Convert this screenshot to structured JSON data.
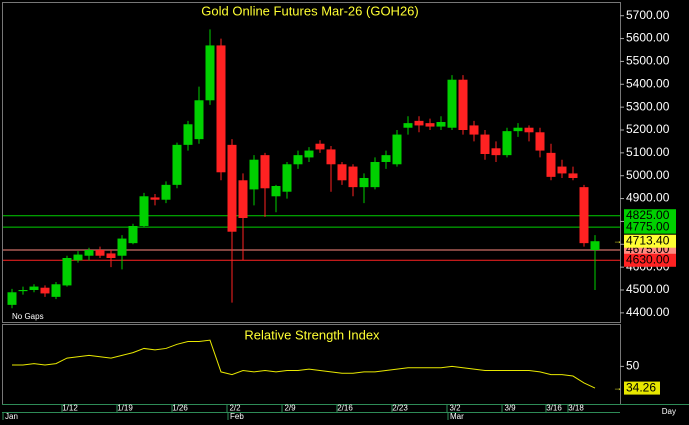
{
  "chart_data": {
    "type": "candlestick",
    "title": "Gold Online Futures Mar-26 (GOH26)",
    "note": "No Gaps",
    "x_unit": "Day",
    "xticks": [
      {
        "value": 5,
        "label": "1/12"
      },
      {
        "value": 10,
        "label": "1/19"
      },
      {
        "value": 15,
        "label": "1/26"
      },
      {
        "value": 20,
        "label": "2/2"
      },
      {
        "value": 25,
        "label": "2/9"
      },
      {
        "value": 30,
        "label": "2/16"
      },
      {
        "value": 35,
        "label": "2/23"
      },
      {
        "value": 40,
        "label": "3/2"
      },
      {
        "value": 45,
        "label": "3/9"
      },
      {
        "value": 49,
        "label": "3/16"
      },
      {
        "value": 51,
        "label": "3/18"
      }
    ],
    "months": [
      {
        "value": 0,
        "label": "Jan"
      },
      {
        "value": 20,
        "label": "Feb"
      },
      {
        "value": 40,
        "label": "Mar"
      }
    ],
    "ylim": [
      4360,
      5760
    ],
    "yticks": [
      {
        "value": 4400,
        "label": "4400.00"
      },
      {
        "value": 4500,
        "label": "4500.00"
      },
      {
        "value": 4600,
        "label": "4600.00"
      },
      {
        "value": 4700,
        "label": "4700.00"
      },
      {
        "value": 4800,
        "label": "4800.00"
      },
      {
        "value": 4900,
        "label": "4900.00"
      },
      {
        "value": 5000,
        "label": "5000.00"
      },
      {
        "value": 5100,
        "label": "5100.00"
      },
      {
        "value": 5200,
        "label": "5200.00"
      },
      {
        "value": 5300,
        "label": "5300.00"
      },
      {
        "value": 5400,
        "label": "5400.00"
      },
      {
        "value": 5500,
        "label": "5500.00"
      },
      {
        "value": 5600,
        "label": "5600.00"
      },
      {
        "value": 5700,
        "label": "5700.00"
      }
    ],
    "up_color": "#00d000",
    "down_color": "#ff2222",
    "open": [
      4435,
      4495,
      4500,
      4510,
      4470,
      4520,
      4630,
      4650,
      4675,
      4660,
      4650,
      4705,
      4780,
      4905,
      4895,
      4960,
      5135,
      5160,
      5330,
      5570,
      5135,
      4980,
      4940,
      5090,
      4910,
      4930,
      5050,
      5080,
      5140,
      5115,
      5050,
      5040,
      4950,
      4950,
      5060,
      5050,
      5210,
      5240,
      5230,
      5215,
      5210,
      5420,
      5220,
      5180,
      5120,
      5090,
      5195,
      5210,
      5190,
      5100,
      5040,
      5010,
      4950,
      4675
    ],
    "high": [
      4505,
      4515,
      4525,
      4520,
      4535,
      4650,
      4670,
      4685,
      4690,
      4675,
      4740,
      4790,
      4925,
      4920,
      4975,
      5145,
      5240,
      5390,
      5640,
      5600,
      5160,
      5010,
      5090,
      5100,
      4960,
      5060,
      5110,
      5125,
      5155,
      5130,
      5060,
      5050,
      5010,
      5080,
      5110,
      5200,
      5260,
      5260,
      5250,
      5260,
      5440,
      5440,
      5240,
      5200,
      5150,
      5210,
      5230,
      5220,
      5210,
      5140,
      5070,
      5040,
      4960,
      4740
    ],
    "low": [
      4420,
      4480,
      4490,
      4470,
      4460,
      4515,
      4620,
      4630,
      4640,
      4600,
      4590,
      4700,
      4775,
      4870,
      4880,
      4945,
      5110,
      5140,
      5310,
      4980,
      4445,
      4630,
      4870,
      4820,
      4840,
      4900,
      5030,
      5060,
      5100,
      4930,
      4960,
      4910,
      4880,
      4940,
      5030,
      5040,
      5180,
      5190,
      5200,
      5200,
      5200,
      5180,
      5150,
      5070,
      5060,
      5080,
      5170,
      5150,
      5080,
      4980,
      4990,
      4980,
      4690,
      4500
    ],
    "close": [
      4490,
      4500,
      4515,
      4485,
      4525,
      4640,
      4655,
      4675,
      4650,
      4640,
      4725,
      4780,
      4910,
      4895,
      4960,
      5135,
      5225,
      5330,
      5570,
      5015,
      4755,
      4815,
      5070,
      4945,
      4955,
      5050,
      5090,
      5110,
      5115,
      5050,
      4980,
      4950,
      4990,
      5060,
      5090,
      5180,
      5230,
      5220,
      5215,
      5235,
      5420,
      5200,
      5180,
      5095,
      5090,
      5195,
      5210,
      5190,
      5110,
      4995,
      5010,
      4990,
      4705,
      4713.4
    ],
    "last": {
      "value": 4713.4,
      "label": "4713.40",
      "color": "#ffff33"
    },
    "levels": [
      {
        "value": 4825,
        "label": "4825.00",
        "color": "#00d000"
      },
      {
        "value": 4775,
        "label": "4775.00",
        "color": "#00d000"
      },
      {
        "value": 4675,
        "label": "4675.00",
        "color": "#ff8a80"
      },
      {
        "value": 4630,
        "label": "4630.00",
        "color": "#ff2222"
      }
    ],
    "rsi": {
      "title": "Relative Strength Index",
      "color": "#e8e800",
      "ylim": [
        22,
        80
      ],
      "yticks": [
        50
      ],
      "values": [
        51,
        51,
        52,
        51,
        52,
        56,
        57,
        58,
        57,
        56,
        58,
        60,
        63,
        62,
        63,
        66,
        68,
        68,
        69,
        46,
        44,
        47,
        46,
        47,
        46,
        47,
        47,
        48,
        47,
        46,
        45,
        45,
        46,
        46,
        47,
        48,
        49,
        49,
        49,
        49,
        50,
        49,
        48,
        47,
        47,
        47,
        47,
        47,
        46,
        44,
        44,
        43,
        38,
        34.26
      ],
      "last_label": "34.26"
    }
  }
}
